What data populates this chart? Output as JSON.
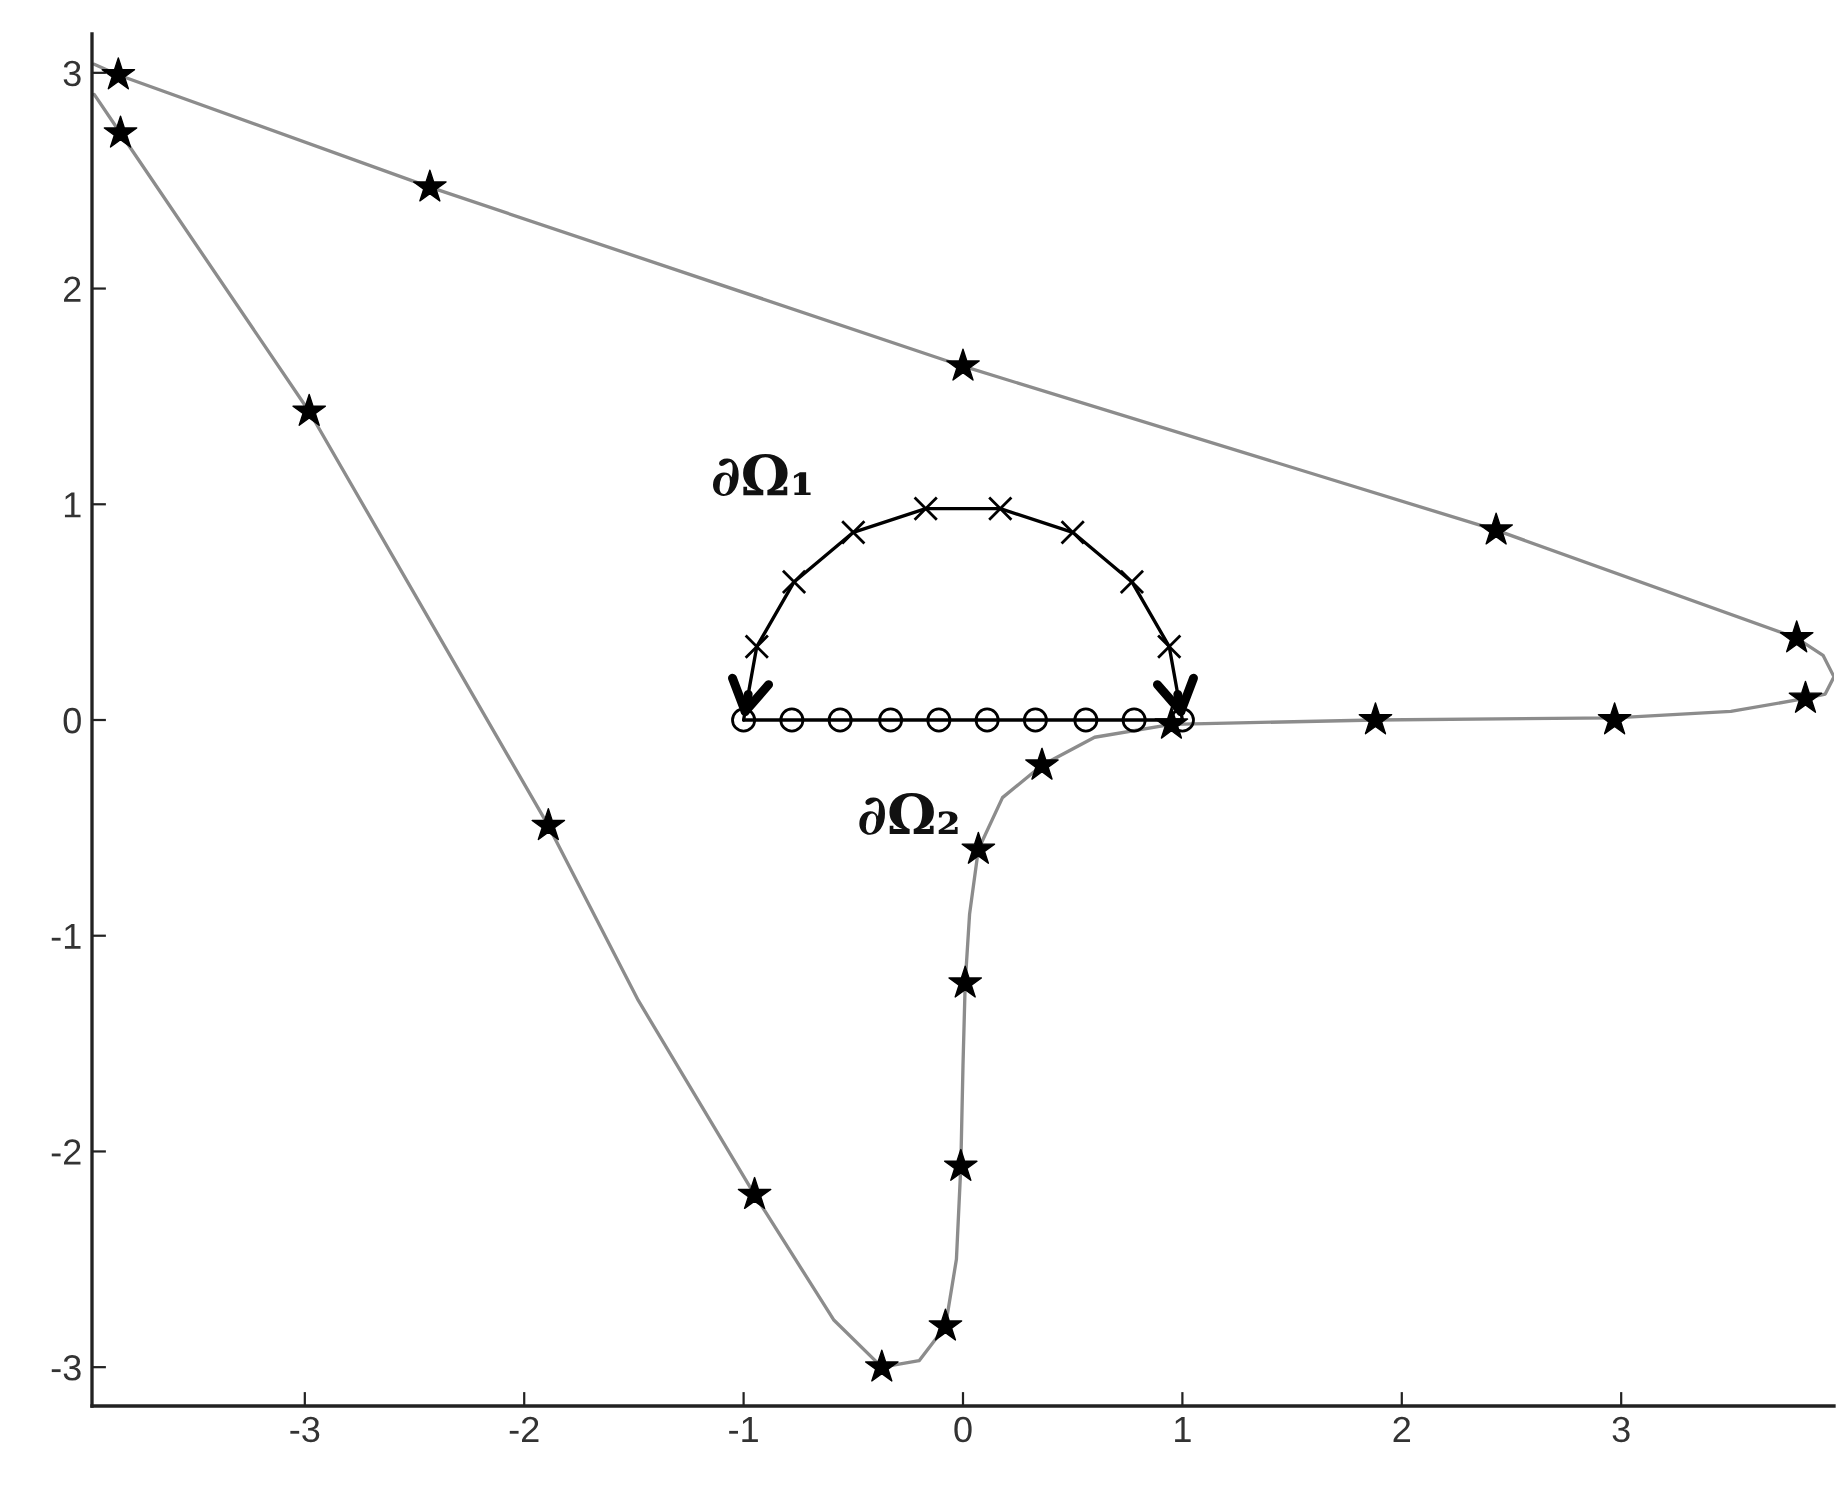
{
  "chart_data": {
    "type": "line",
    "xlim": [
      -3.97,
      3.97
    ],
    "ylim": [
      -3.18,
      3.18
    ],
    "xticks": [
      -3,
      -2,
      -1,
      0,
      1,
      2,
      3
    ],
    "yticks": [
      -3,
      -2,
      -1,
      0,
      1,
      2,
      3
    ],
    "annotations": [
      "∂Ω₁",
      "∂Ω₂"
    ],
    "series": [
      {
        "color": "#8c8c8c",
        "marker": "none",
        "line_style": "solid",
        "x": [
          -3.96,
          -3.85,
          -2.43,
          0,
          2.43,
          3.8,
          3.92,
          3.97,
          3.93,
          3.84,
          3.5,
          2.97,
          1.88,
          0.95,
          0.6,
          0.36,
          0.18,
          0.07,
          0.03,
          0.01,
          0.0,
          -0.01,
          -0.03,
          -0.08,
          -0.2,
          -0.37,
          -0.59,
          -0.95,
          -1.48,
          -1.89,
          -2.98,
          -3.84,
          -3.96
        ],
        "values": [
          3.04,
          2.99,
          2.47,
          1.64,
          0.88,
          0.38,
          0.3,
          0.2,
          0.12,
          0.1,
          0.04,
          0.01,
          0.0,
          -0.02,
          -0.08,
          -0.21,
          -0.36,
          -0.6,
          -0.9,
          -1.22,
          -1.6,
          -2.07,
          -2.5,
          -2.81,
          -2.97,
          -3.0,
          -2.78,
          -2.2,
          -1.3,
          -0.49,
          1.43,
          2.72,
          2.9
        ]
      },
      {
        "type": "scatter",
        "color": "#000000",
        "marker": "star",
        "x": [
          -3.85,
          -3.84,
          -2.43,
          0,
          2.43,
          3.8,
          3.84,
          2.97,
          1.88,
          0.95,
          0.36,
          0.07,
          0.01,
          -0.01,
          -0.08,
          -0.37,
          -0.95,
          -1.89,
          -2.98
        ],
        "values": [
          2.99,
          2.72,
          2.47,
          1.64,
          0.88,
          0.38,
          0.1,
          0.0,
          0.0,
          -0.02,
          -0.21,
          -0.6,
          -1.22,
          -2.07,
          -2.81,
          -3.0,
          -2.2,
          -0.49,
          1.43
        ]
      },
      {
        "color": "#000000",
        "marker": "cross",
        "line_style": "solid",
        "x": [
          0.94,
          0.77,
          0.5,
          0.17,
          -0.17,
          -0.5,
          -0.77,
          -0.94
        ],
        "values": [
          0.34,
          0.64,
          0.87,
          0.98,
          0.98,
          0.87,
          0.64,
          0.34
        ]
      },
      {
        "color": "#000000",
        "marker": "circle",
        "line_style": "solid",
        "x": [
          -1,
          -0.78,
          -0.56,
          -0.33,
          -0.11,
          0.11,
          0.33,
          0.56,
          0.78,
          1
        ],
        "values": [
          0,
          0,
          0,
          0,
          0,
          0,
          0,
          0,
          0,
          0
        ]
      }
    ]
  }
}
